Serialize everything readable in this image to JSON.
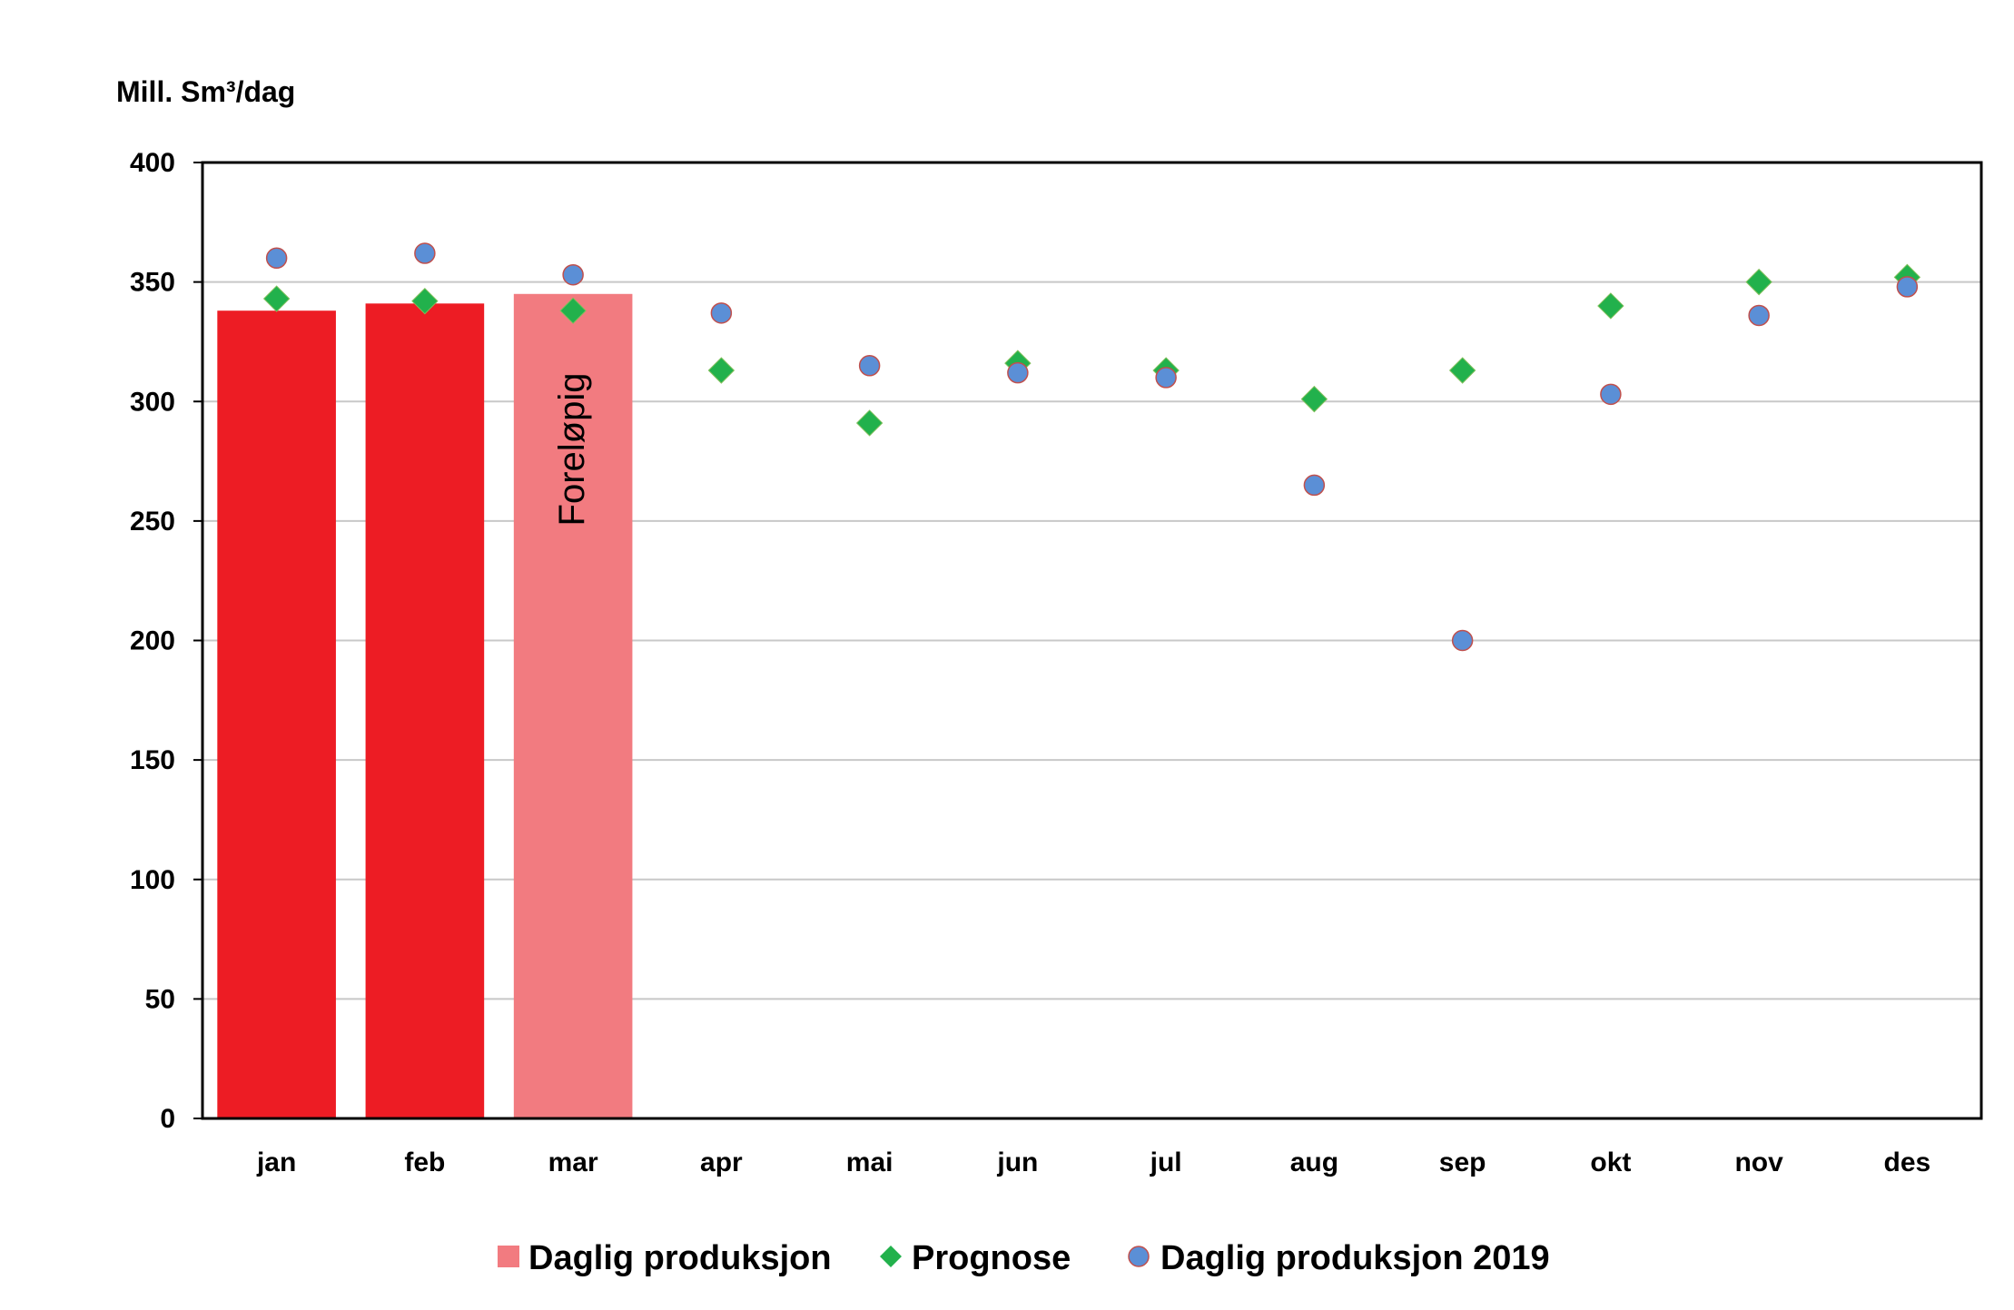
{
  "chart_data": {
    "type": "bar",
    "ylabel": "Mill. Sm³/dag",
    "ylim": [
      0,
      400
    ],
    "yticks": [
      0,
      50,
      100,
      150,
      200,
      250,
      300,
      350,
      400
    ],
    "grid": true,
    "categories": [
      "jan",
      "feb",
      "mar",
      "apr",
      "mai",
      "jun",
      "jul",
      "aug",
      "sep",
      "okt",
      "nov",
      "des"
    ],
    "bars": {
      "name": "Daglig produksjon",
      "values": [
        338,
        341,
        345,
        null,
        null,
        null,
        null,
        null,
        null,
        null,
        null,
        null
      ],
      "colors": [
        "#ed1c24",
        "#ed1c24",
        "#f27b80"
      ],
      "annotation": {
        "category": "mar",
        "text": "Foreløpig"
      }
    },
    "series": [
      {
        "name": "Prognose",
        "marker": "diamond",
        "color": "#22b14c",
        "values": [
          343,
          342,
          338,
          313,
          291,
          316,
          313,
          301,
          313,
          340,
          350,
          352
        ]
      },
      {
        "name": "Daglig produksjon 2019",
        "marker": "circle",
        "color": "#5b8fd6",
        "values": [
          360,
          362,
          353,
          337,
          315,
          312,
          310,
          265,
          200,
          303,
          336,
          348
        ]
      }
    ],
    "legend": {
      "position": "bottom",
      "entries": [
        "Daglig produksjon",
        "Prognose",
        "Daglig produksjon 2019"
      ]
    }
  }
}
